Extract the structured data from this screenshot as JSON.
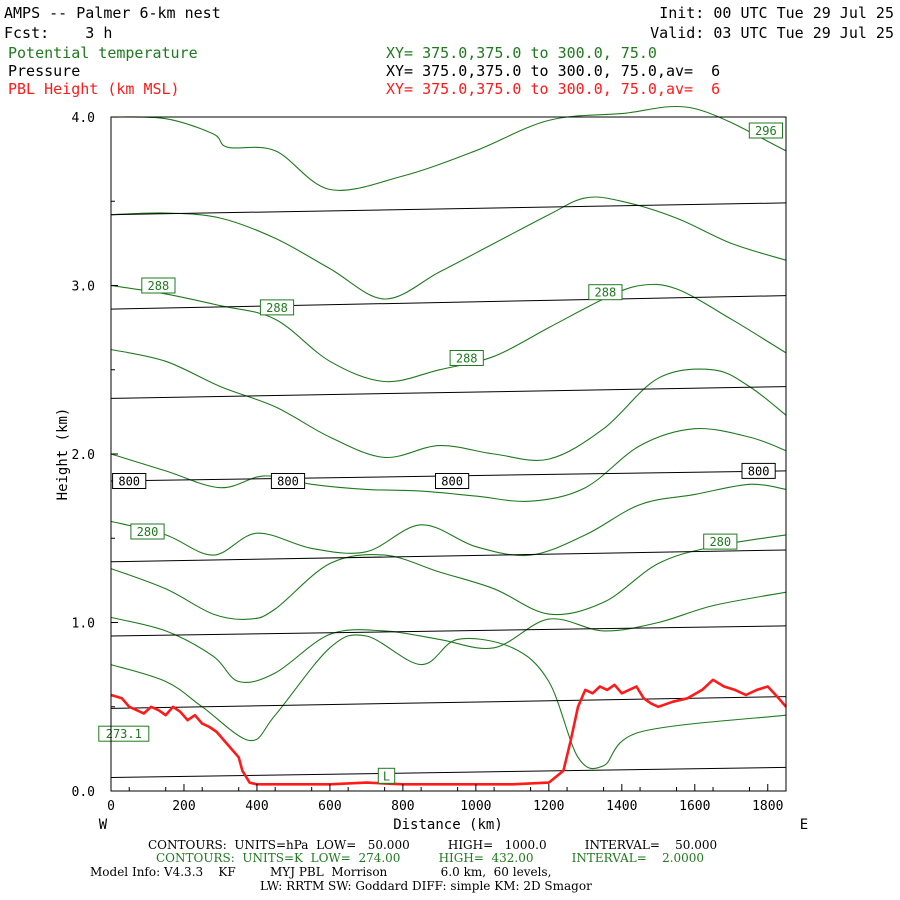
{
  "header": {
    "title": "AMPS -- Palmer 6-km nest",
    "init": "Init: 00 UTC Tue 29 Jul 25",
    "fcst": "Fcst:    3 h",
    "valid": "Valid: 03 UTC Tue 29 Jul 25"
  },
  "fields": [
    {
      "name": "Potential temperature",
      "xy": "XY= 375.0,375.0 to 300.0, 75.0",
      "color": "#1f7a1f"
    },
    {
      "name": "Pressure",
      "xy": "XY= 375.0,375.0 to 300.0, 75.0,av=  6",
      "color": "#000000"
    },
    {
      "name": "PBL Height (km MSL)",
      "xy": "XY= 375.0,375.0 to 300.0, 75.0,av=  6",
      "color": "#ff1a1a"
    }
  ],
  "footer": {
    "line1": "CONTOURS:  UNITS=hPa  LOW=   50.000          HIGH=   1000.0          INTERVAL=    50.000",
    "line2": "CONTOURS:  UNITS=K  LOW=  274.00          HIGH=  432.00          INTERVAL=    2.0000",
    "line3": "Model Info: V4.3.3    KF         MYJ PBL  Morrison              6.0 km,  60 levels,",
    "line4": "LW: RRTM SW: Goddard DIFF: simple KM: 2D Smagor"
  },
  "chart_data": {
    "type": "line",
    "xlabel": "Distance (km)",
    "ylabel": "Height (km)",
    "xlim": [
      0,
      1850
    ],
    "ylim": [
      0,
      4.0
    ],
    "xticks": [
      0,
      200,
      400,
      600,
      800,
      1000,
      1200,
      1400,
      1600,
      1800
    ],
    "yticks": [
      0.0,
      1.0,
      2.0,
      3.0,
      4.0
    ],
    "ytick_labels": [
      "0.0",
      "1.0",
      "2.0",
      "3.0",
      "4.0"
    ],
    "left_end_label": "W",
    "right_end_label": "E",
    "colors": {
      "theta": "#1f7a1f",
      "pressure": "#000000",
      "pbl": "#ff1a1a"
    },
    "pressure_lines": [
      {
        "x": [
          0,
          1850
        ],
        "y": [
          0.08,
          0.14
        ]
      },
      {
        "x": [
          0,
          1850
        ],
        "y": [
          0.49,
          0.56
        ]
      },
      {
        "x": [
          0,
          1850
        ],
        "y": [
          0.92,
          0.98
        ]
      },
      {
        "x": [
          0,
          1850
        ],
        "y": [
          1.36,
          1.43
        ]
      },
      {
        "x": [
          0,
          1850
        ],
        "y": [
          1.84,
          1.9
        ]
      },
      {
        "x": [
          0,
          1850
        ],
        "y": [
          2.33,
          2.4
        ]
      },
      {
        "x": [
          0,
          1850
        ],
        "y": [
          2.86,
          2.94
        ]
      },
      {
        "x": [
          0,
          1850
        ],
        "y": [
          3.42,
          3.49
        ]
      }
    ],
    "theta_lines": [
      {
        "x": [
          0,
          150,
          280,
          320,
          450,
          600,
          800,
          1000,
          1200,
          1400,
          1600,
          1850
        ],
        "y": [
          4.0,
          3.99,
          3.9,
          3.82,
          3.8,
          3.57,
          3.65,
          3.8,
          3.98,
          4.02,
          4.05,
          3.8
        ]
      },
      {
        "x": [
          0,
          150,
          300,
          450,
          600,
          750,
          900,
          1050,
          1200,
          1300,
          1400,
          1550,
          1700,
          1850
        ],
        "y": [
          3.42,
          3.43,
          3.4,
          3.28,
          3.1,
          2.92,
          3.08,
          3.25,
          3.42,
          3.52,
          3.5,
          3.4,
          3.25,
          3.15
        ]
      },
      {
        "x": [
          0,
          150,
          300,
          450,
          600,
          750,
          900,
          1050,
          1200,
          1350,
          1450,
          1550,
          1700,
          1850
        ],
        "y": [
          3.0,
          2.95,
          2.88,
          2.8,
          2.55,
          2.43,
          2.5,
          2.58,
          2.75,
          2.92,
          3.0,
          2.98,
          2.8,
          2.6
        ]
      },
      {
        "x": [
          0,
          150,
          300,
          450,
          600,
          750,
          900,
          1050,
          1200,
          1350,
          1500,
          1650,
          1750,
          1850
        ],
        "y": [
          2.62,
          2.55,
          2.4,
          2.28,
          2.1,
          1.98,
          2.05,
          2.0,
          1.97,
          2.15,
          2.45,
          2.5,
          2.4,
          2.23
        ]
      },
      {
        "x": [
          0,
          150,
          300,
          420,
          550,
          700,
          850,
          1000,
          1150,
          1300,
          1450,
          1600,
          1750,
          1850
        ],
        "y": [
          2.0,
          1.9,
          1.8,
          1.87,
          1.82,
          1.79,
          1.78,
          1.75,
          1.72,
          1.8,
          2.05,
          2.15,
          2.1,
          2.02
        ]
      },
      {
        "x": [
          0,
          150,
          280,
          400,
          550,
          700,
          850,
          1000,
          1150,
          1300,
          1450,
          1600,
          1750,
          1850
        ],
        "y": [
          1.6,
          1.52,
          1.4,
          1.53,
          1.44,
          1.42,
          1.58,
          1.45,
          1.4,
          1.52,
          1.7,
          1.76,
          1.82,
          1.79
        ]
      },
      {
        "x": [
          0,
          150,
          280,
          380,
          450,
          600,
          750,
          900,
          1050,
          1200,
          1350,
          1500,
          1650,
          1850
        ],
        "y": [
          1.32,
          1.2,
          1.05,
          1.02,
          1.08,
          1.35,
          1.4,
          1.3,
          1.2,
          1.05,
          1.12,
          1.35,
          1.45,
          1.52
        ]
      },
      {
        "x": [
          0,
          150,
          280,
          350,
          450,
          600,
          750,
          900,
          1050,
          1200,
          1350,
          1500,
          1650,
          1850
        ],
        "y": [
          1.03,
          0.95,
          0.8,
          0.65,
          0.7,
          0.93,
          0.95,
          0.9,
          0.85,
          1.02,
          0.95,
          1.0,
          1.1,
          1.18
        ]
      },
      {
        "x": [
          0,
          150,
          250,
          380,
          450,
          600,
          700,
          850,
          950,
          1100,
          1200,
          1280,
          1350,
          1450,
          1850
        ],
        "y": [
          0.75,
          0.65,
          0.5,
          0.3,
          0.45,
          0.85,
          0.92,
          0.75,
          0.9,
          0.85,
          0.65,
          0.2,
          0.15,
          0.35,
          0.45
        ]
      }
    ],
    "theta_labels": [
      {
        "text": "296",
        "x": 1795,
        "y": 3.92
      },
      {
        "text": "288",
        "x": 130,
        "y": 3.0
      },
      {
        "text": "288",
        "x": 455,
        "y": 2.87
      },
      {
        "text": "288",
        "x": 975,
        "y": 2.57
      },
      {
        "text": "288",
        "x": 1355,
        "y": 2.96
      },
      {
        "text": "280",
        "x": 100,
        "y": 1.54
      },
      {
        "text": "280",
        "x": 1670,
        "y": 1.48
      },
      {
        "text": "273.1",
        "x": 35,
        "y": 0.34
      },
      {
        "text": "L",
        "x": 755,
        "y": 0.09
      }
    ],
    "pressure_labels": [
      {
        "text": "800",
        "x": 50,
        "y": 1.84
      },
      {
        "text": "800",
        "x": 485,
        "y": 1.84
      },
      {
        "text": "800",
        "x": 935,
        "y": 1.84
      },
      {
        "text": "800",
        "x": 1775,
        "y": 1.9
      }
    ],
    "pbl": {
      "name": "PBL Height (km MSL)",
      "x": [
        0,
        30,
        50,
        70,
        90,
        110,
        130,
        150,
        170,
        190,
        210,
        230,
        250,
        270,
        290,
        310,
        330,
        350,
        360,
        380,
        400,
        500,
        600,
        700,
        800,
        900,
        1000,
        1100,
        1200,
        1240,
        1260,
        1280,
        1300,
        1320,
        1340,
        1360,
        1380,
        1400,
        1420,
        1440,
        1460,
        1480,
        1500,
        1540,
        1580,
        1620,
        1650,
        1680,
        1710,
        1740,
        1770,
        1800,
        1830,
        1850
      ],
      "y": [
        0.57,
        0.55,
        0.5,
        0.48,
        0.46,
        0.5,
        0.48,
        0.45,
        0.5,
        0.47,
        0.42,
        0.45,
        0.4,
        0.38,
        0.35,
        0.3,
        0.25,
        0.2,
        0.12,
        0.05,
        0.04,
        0.04,
        0.04,
        0.05,
        0.04,
        0.04,
        0.04,
        0.04,
        0.05,
        0.12,
        0.3,
        0.5,
        0.6,
        0.58,
        0.62,
        0.6,
        0.63,
        0.58,
        0.6,
        0.62,
        0.55,
        0.52,
        0.5,
        0.53,
        0.55,
        0.6,
        0.66,
        0.62,
        0.6,
        0.57,
        0.6,
        0.62,
        0.55,
        0.5
      ]
    }
  }
}
